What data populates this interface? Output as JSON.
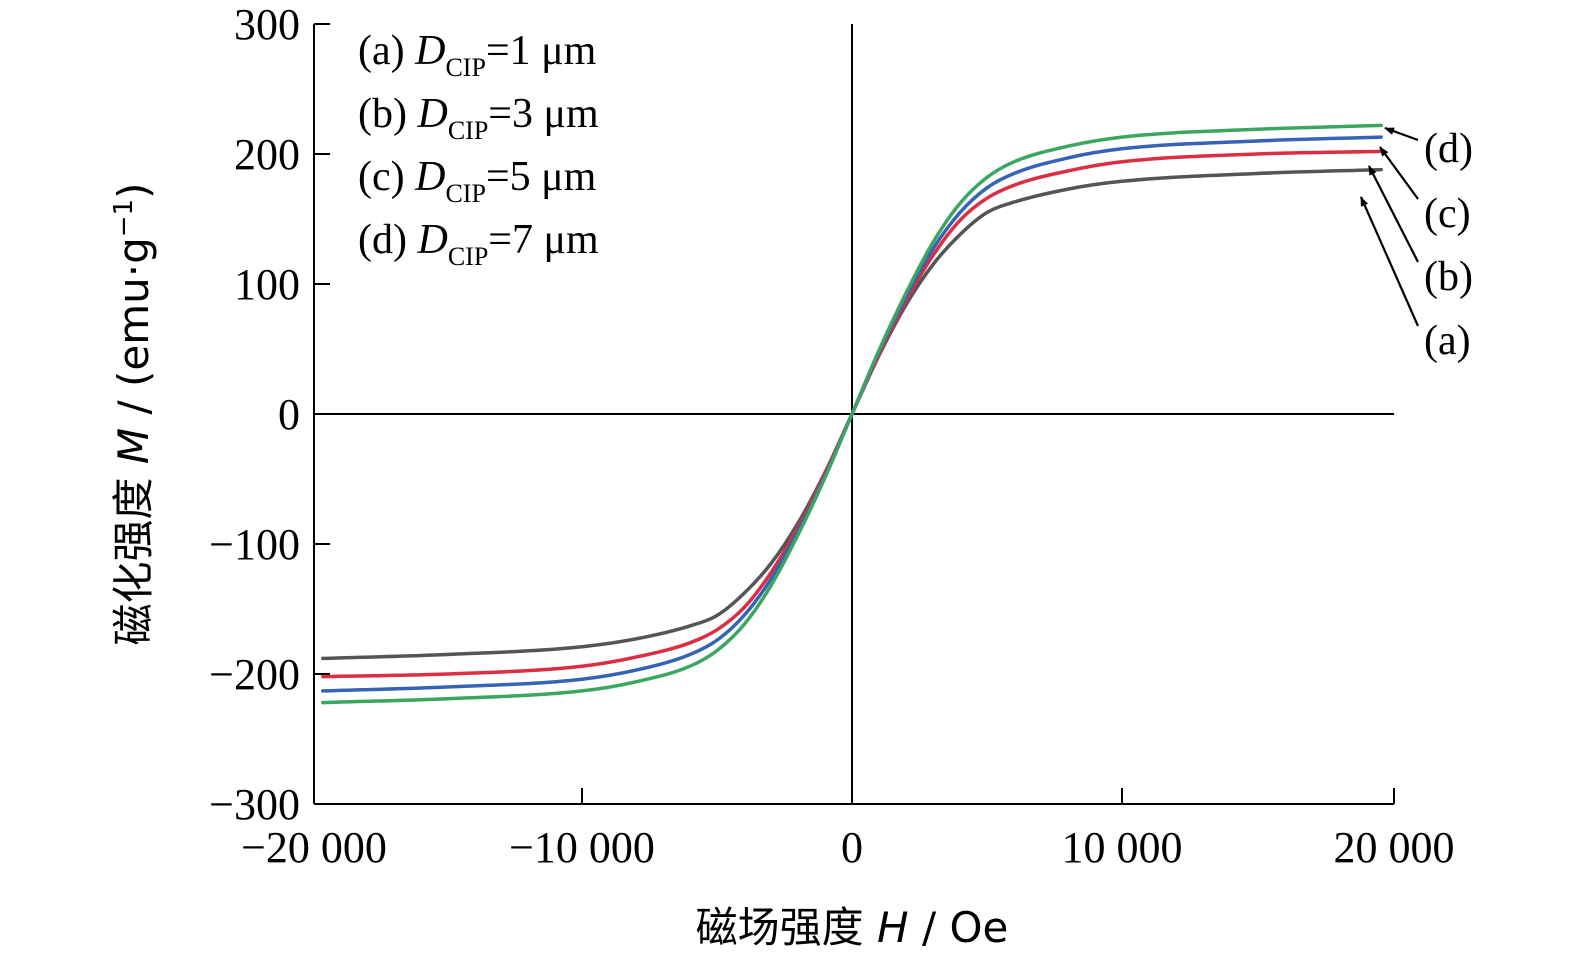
{
  "chart_data": {
    "type": "line",
    "xlabel": {
      "prefix": "磁场强度 ",
      "symbol": "H",
      "unit": " / Oe"
    },
    "ylabel": {
      "prefix": "磁化强度 ",
      "symbol": "M",
      "unit": " / (emu·g",
      "exponent": "−1",
      "close": ")"
    },
    "xlim": [
      -20000,
      20000
    ],
    "ylim": [
      -300,
      300
    ],
    "x_tick_labels": [
      "−20 000",
      "−10 000",
      "0",
      "10 000",
      "20 000"
    ],
    "y_tick_labels": [
      "−300",
      "−200",
      "−100",
      "0",
      "100",
      "200",
      "300"
    ],
    "grid": false,
    "legend_placement": "top-left",
    "series": [
      {
        "name": "(a) DCIP=1 μm",
        "label": "(a)",
        "prefix": "(a) ",
        "sub": "CIP",
        "value": "=1 μm",
        "color": "#555555",
        "x": [
          -19600,
          -15000,
          -10000,
          -8000,
          -6000,
          -5000,
          -4000,
          -3000,
          -2000,
          -1000,
          0,
          1000,
          2000,
          3000,
          4000,
          5000,
          6000,
          8000,
          10000,
          15000,
          19600
        ],
        "y": [
          -188,
          -185,
          -179,
          -173,
          -163,
          -155,
          -138,
          -115,
          -84,
          -45,
          0,
          45,
          84,
          115,
          138,
          155,
          163,
          173,
          179,
          185,
          188
        ]
      },
      {
        "name": "(b) DCIP=3 μm",
        "label": "(b)",
        "prefix": "(b) ",
        "sub": "CIP",
        "value": "=3 μm",
        "color": "#dc2d43",
        "x": [
          -19600,
          -15000,
          -10000,
          -8000,
          -6000,
          -5000,
          -4000,
          -3000,
          -2000,
          -1000,
          0,
          1000,
          2000,
          3000,
          4000,
          5000,
          6000,
          8000,
          10000,
          15000,
          19600
        ],
        "y": [
          -202,
          -200,
          -194,
          -187,
          -176,
          -166,
          -149,
          -122,
          -87,
          -46,
          0,
          46,
          87,
          122,
          149,
          166,
          176,
          187,
          194,
          200,
          202
        ]
      },
      {
        "name": "(c) DCIP=5 μm",
        "label": "(c)",
        "prefix": "(c) ",
        "sub": "CIP",
        "value": "=5 μm",
        "color": "#3563b5",
        "x": [
          -19600,
          -15000,
          -10000,
          -8000,
          -6000,
          -5000,
          -4000,
          -3000,
          -2000,
          -1000,
          0,
          1000,
          2000,
          3000,
          4000,
          5000,
          6000,
          8000,
          10000,
          15000,
          19600
        ],
        "y": [
          -213,
          -210,
          -204,
          -197,
          -185,
          -174,
          -155,
          -127,
          -90,
          -48,
          0,
          48,
          90,
          127,
          155,
          174,
          185,
          197,
          204,
          210,
          213
        ]
      },
      {
        "name": "(d) DCIP=7 μm",
        "label": "(d)",
        "prefix": "(d) ",
        "sub": "CIP",
        "value": "=7 μm",
        "color": "#3aa660",
        "x": [
          -19600,
          -15000,
          -10000,
          -8000,
          -6000,
          -5000,
          -4000,
          -3000,
          -2000,
          -1000,
          0,
          1000,
          2000,
          3000,
          4000,
          5000,
          6000,
          8000,
          10000,
          15000,
          19600
        ],
        "y": [
          -222,
          -219,
          -213,
          -206,
          -194,
          -182,
          -162,
          -132,
          -93,
          -49,
          0,
          49,
          93,
          132,
          162,
          182,
          194,
          206,
          213,
          219,
          222
        ]
      }
    ]
  }
}
